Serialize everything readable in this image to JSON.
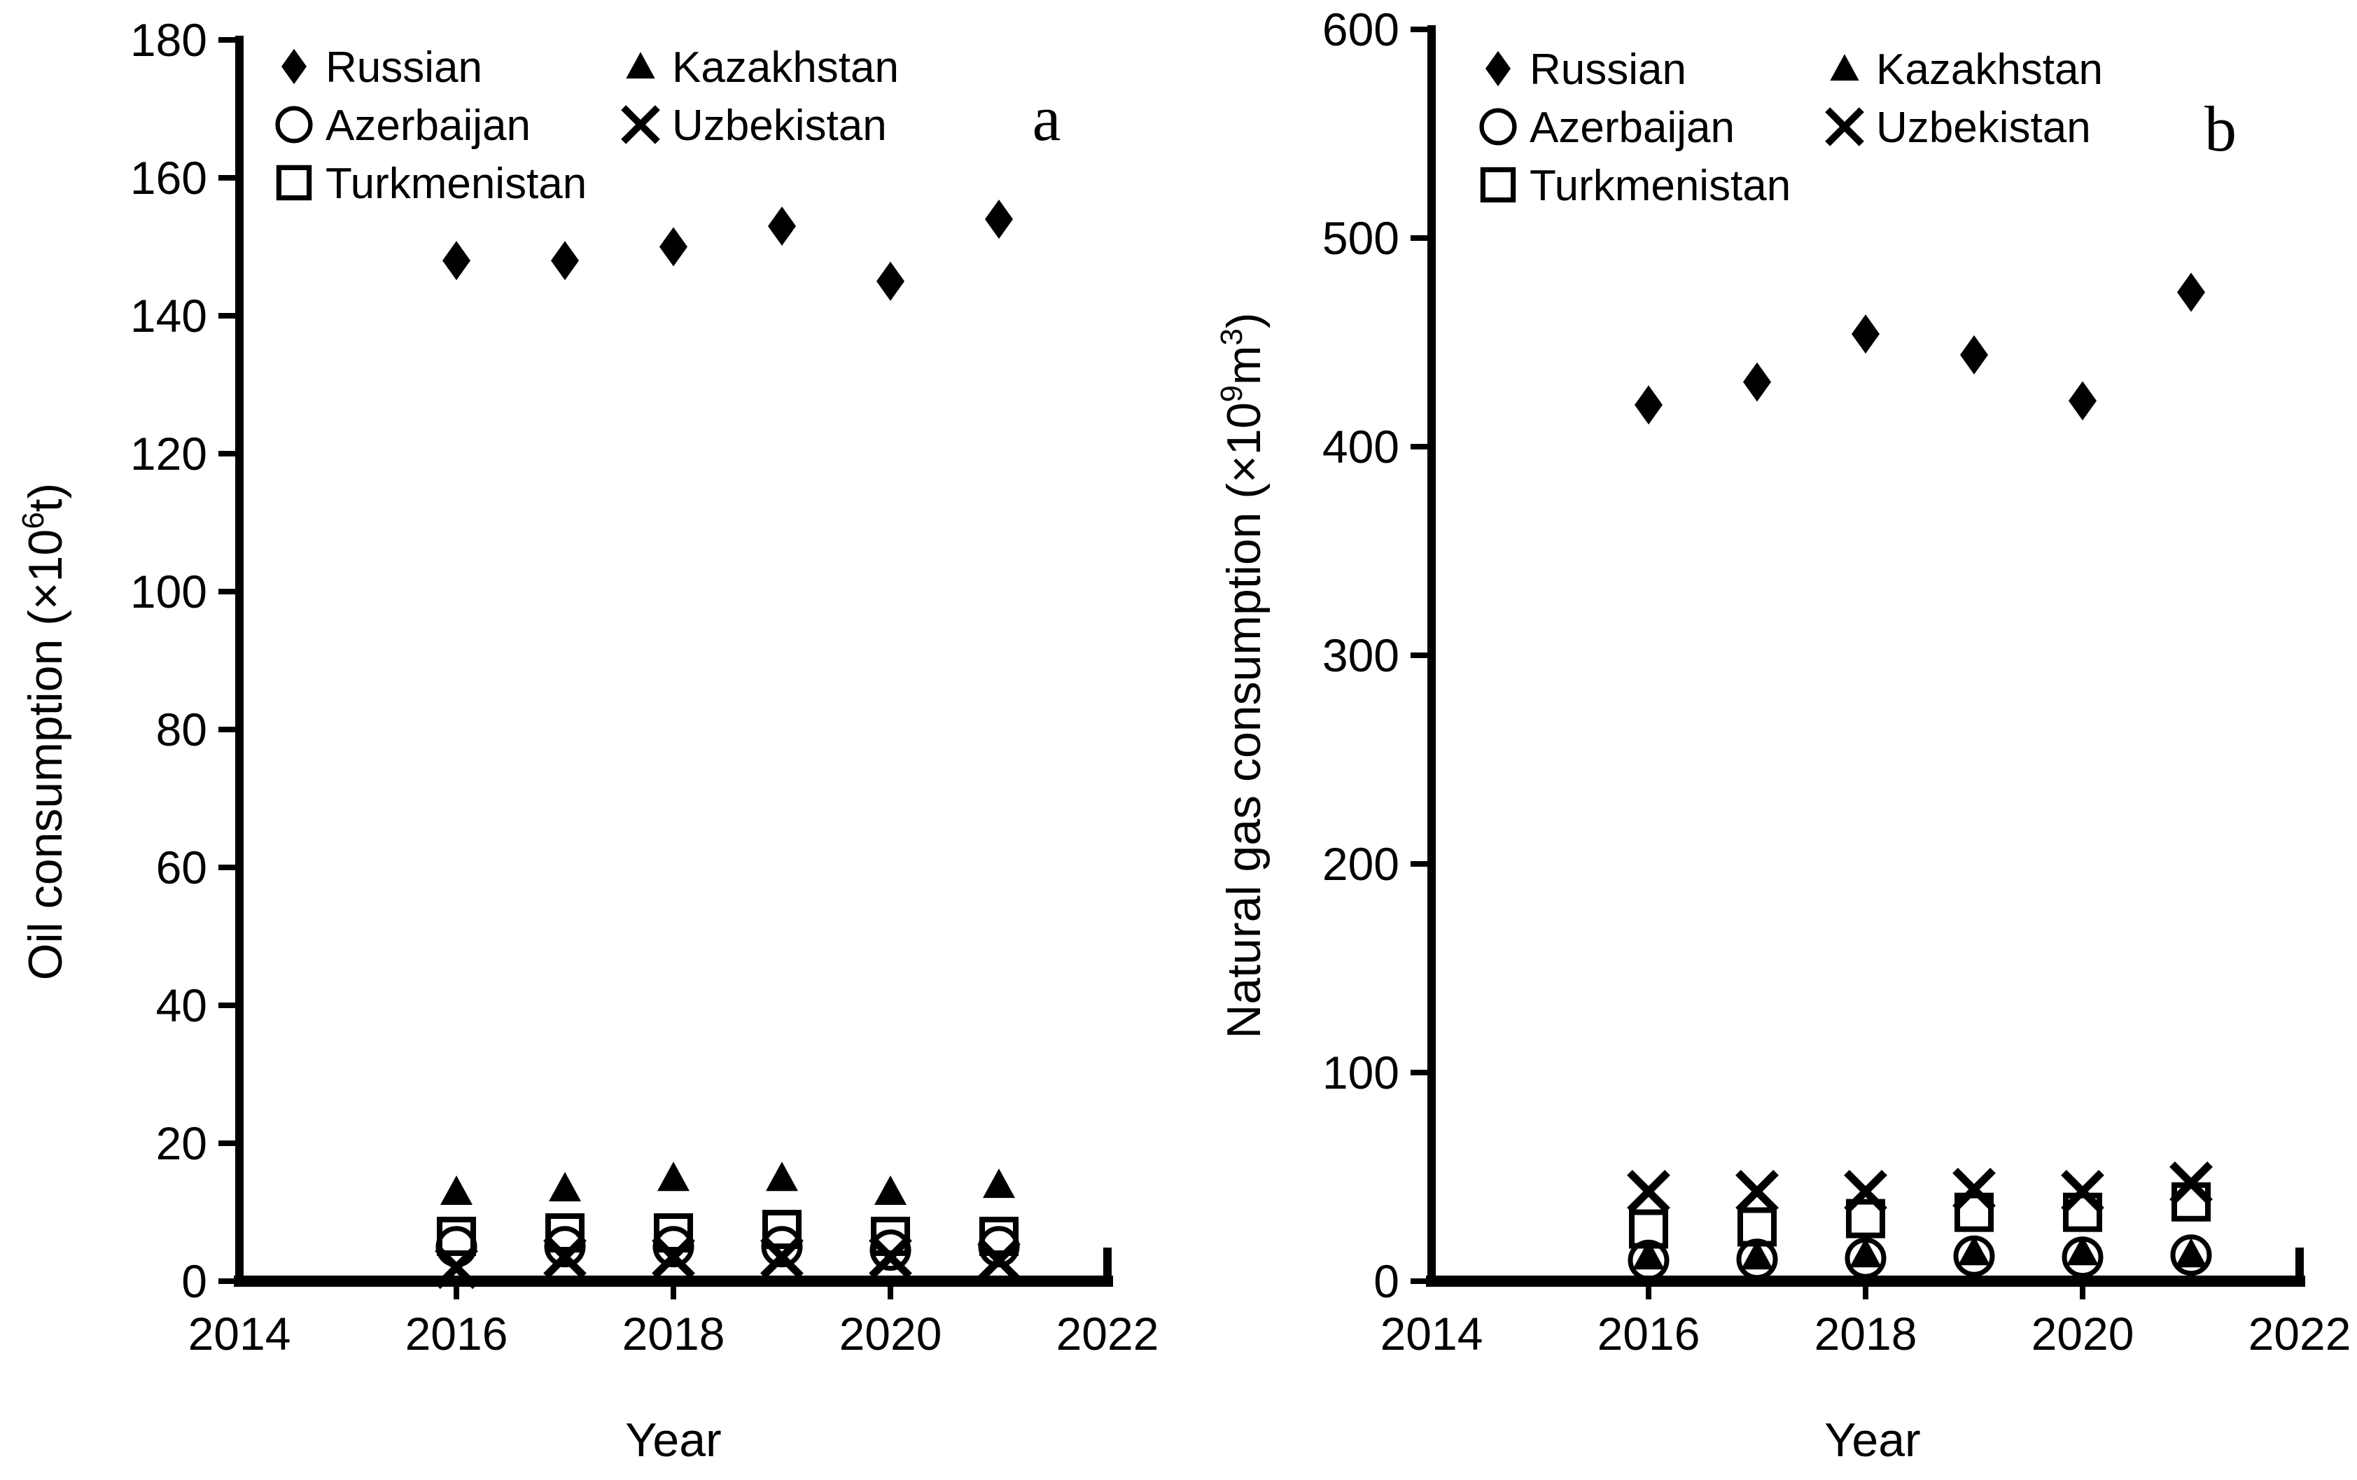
{
  "figure": {
    "background": "#ffffff",
    "ink": "#000000",
    "description": "Two-panel scatter figure of energy consumption by country"
  },
  "chart_data": [
    {
      "type": "scatter",
      "panel_label": "a",
      "xlabel": "Year",
      "ylabel": "Oil consumption (×10⁶t)",
      "ylabel_parts": [
        {
          "text": "Oil consumption ("
        },
        {
          "text": "×10"
        },
        {
          "text": "6",
          "sup": true
        },
        {
          "text": "t)"
        }
      ],
      "unit": "×10⁶ t",
      "xlim": [
        2014,
        2022
      ],
      "ylim": [
        0,
        180
      ],
      "x_ticks": [
        2014,
        2016,
        2018,
        2020,
        2022
      ],
      "y_ticks": [
        0,
        20,
        40,
        60,
        80,
        100,
        120,
        140,
        160,
        180
      ],
      "grid": false,
      "legend_position": "top-left-inside",
      "x": [
        2016,
        2017,
        2018,
        2019,
        2020,
        2021
      ],
      "series": [
        {
          "name": "Russian",
          "marker": "diamond",
          "fill": "solid",
          "values": [
            148,
            148,
            150,
            153,
            145,
            154
          ]
        },
        {
          "name": "Kazakhstan",
          "marker": "triangle",
          "fill": "solid",
          "values": [
            13,
            13.5,
            15,
            15,
            13,
            14
          ]
        },
        {
          "name": "Azerbaijan",
          "marker": "circle",
          "fill": "open",
          "values": [
            5,
            5,
            5,
            5,
            4.5,
            5
          ]
        },
        {
          "name": "Uzbekistan",
          "marker": "x",
          "fill": "line",
          "values": [
            2,
            3.5,
            3.5,
            3.5,
            3.5,
            3
          ]
        },
        {
          "name": "Turkmenistan",
          "marker": "square",
          "fill": "open",
          "values": [
            6.5,
            7,
            7,
            7.5,
            6.5,
            6.5
          ]
        }
      ]
    },
    {
      "type": "scatter",
      "panel_label": "b",
      "xlabel": "Year",
      "ylabel": "Natural gas consumption (×10⁹m³)",
      "ylabel_parts": [
        {
          "text": "Natural gas consumption ("
        },
        {
          "text": "×10"
        },
        {
          "text": "9",
          "sup": true
        },
        {
          "text": "m"
        },
        {
          "text": "3",
          "sup": true
        },
        {
          "text": ")"
        }
      ],
      "unit": "×10⁹ m³",
      "xlim": [
        2014,
        2022
      ],
      "ylim": [
        0,
        600
      ],
      "x_ticks": [
        2014,
        2016,
        2018,
        2020,
        2022
      ],
      "y_ticks": [
        0,
        100,
        200,
        300,
        400,
        500,
        600
      ],
      "grid": false,
      "legend_position": "top-left-inside",
      "x": [
        2016,
        2017,
        2018,
        2019,
        2020,
        2021
      ],
      "series": [
        {
          "name": "Russian",
          "marker": "diamond",
          "fill": "solid",
          "values": [
            420,
            431,
            454,
            444,
            422,
            474
          ]
        },
        {
          "name": "Kazakhstan",
          "marker": "triangle",
          "fill": "solid",
          "values": [
            12,
            12,
            13,
            14,
            14,
            13
          ]
        },
        {
          "name": "Azerbaijan",
          "marker": "circle",
          "fill": "open",
          "values": [
            10,
            10.5,
            11,
            12,
            11.5,
            12.5
          ]
        },
        {
          "name": "Uzbekistan",
          "marker": "x",
          "fill": "line",
          "values": [
            43,
            43,
            43,
            44,
            43,
            47
          ]
        },
        {
          "name": "Turkmenistan",
          "marker": "square",
          "fill": "open",
          "values": [
            25,
            26,
            30,
            33,
            33,
            38
          ]
        }
      ]
    }
  ]
}
